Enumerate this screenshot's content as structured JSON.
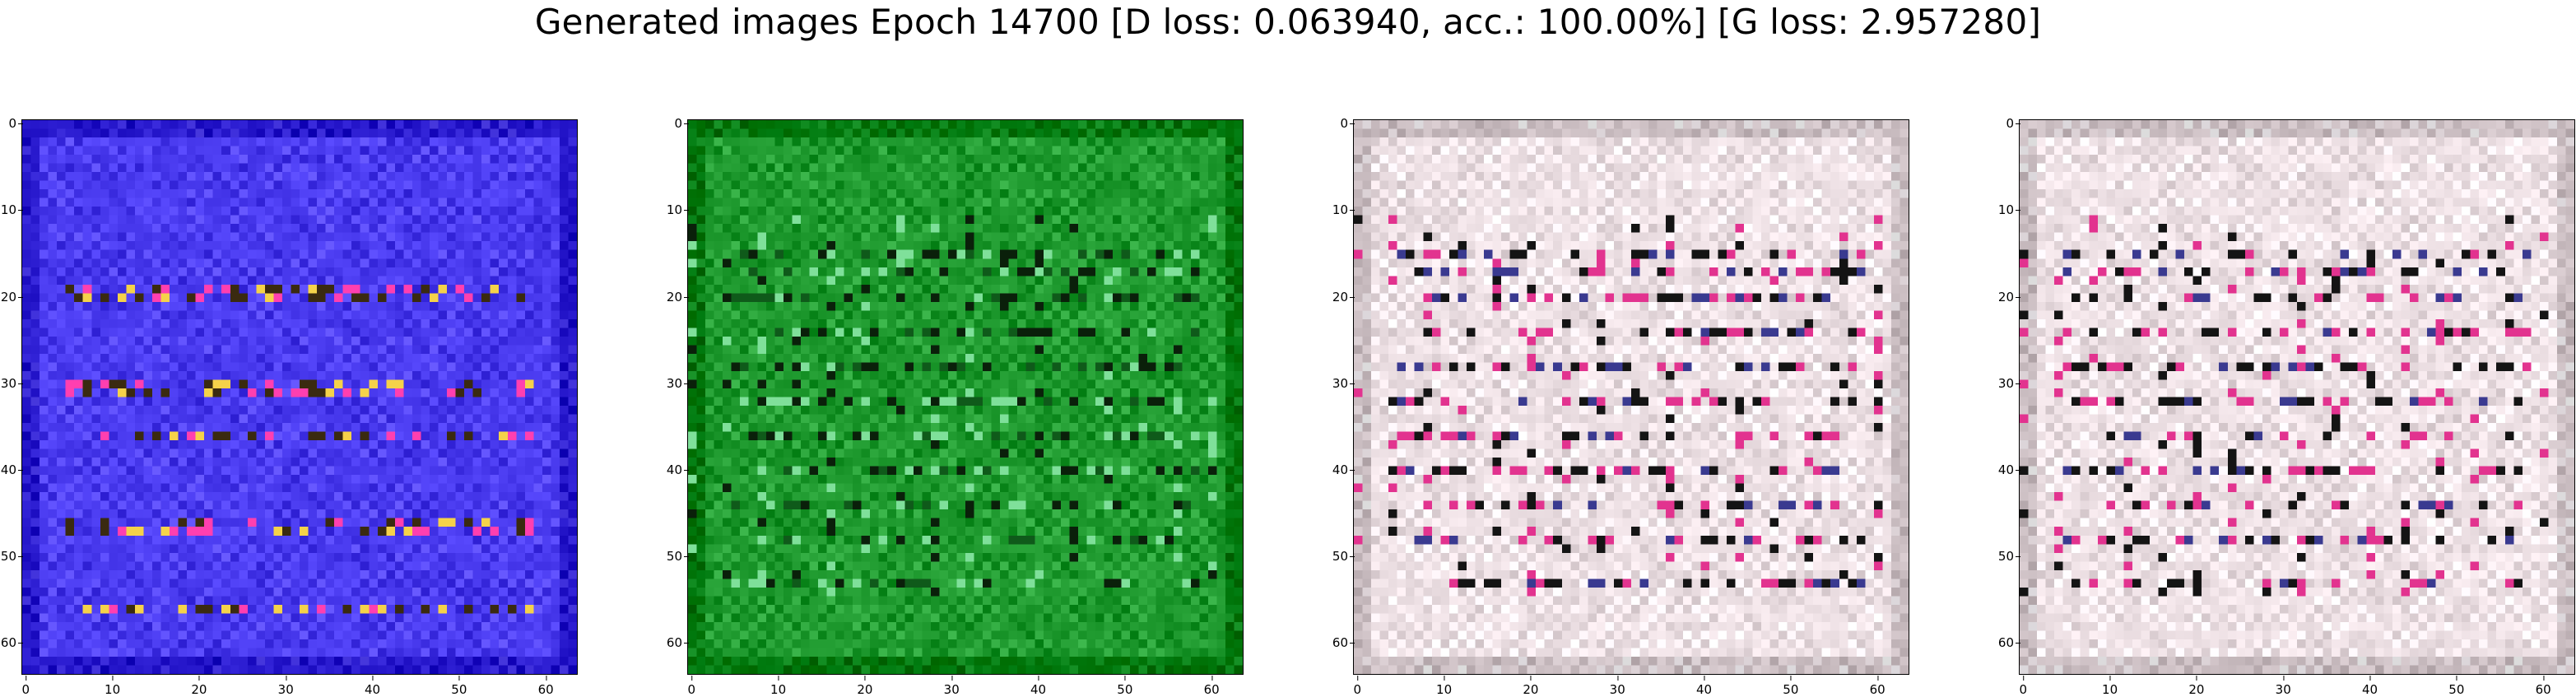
{
  "title": "Generated images Epoch 14700 [D loss: 0.063940, acc.: 100.00%] [G loss: 2.957280]",
  "axes": {
    "ticks": [
      "0",
      "10",
      "20",
      "30",
      "40",
      "50",
      "60"
    ],
    "range": [
      0,
      63
    ]
  },
  "images": [
    {
      "name": "sample-1",
      "palette": {
        "base": "#4b3cf0",
        "stroke_hot": "#ff3fb0",
        "stroke_warm": "#f5d24a",
        "stroke_dark": "#3a2a10"
      },
      "description_colors": "blue-violet background"
    },
    {
      "name": "sample-2",
      "palette": {
        "base": "#1f9a2f",
        "stroke_hot": "#7fe09a",
        "stroke_warm": "#0f5a1a",
        "stroke_dark": "#0a200a"
      },
      "description_colors": "green background"
    },
    {
      "name": "sample-3",
      "palette": {
        "base": "#efe2e6",
        "stroke_hot": "#e2338f",
        "stroke_warm": "#3a3a90",
        "stroke_dark": "#141414"
      },
      "description_colors": "pale pink background"
    },
    {
      "name": "sample-4",
      "palette": {
        "base": "#efe2e6",
        "stroke_hot": "#e2338f",
        "stroke_warm": "#3a3a90",
        "stroke_dark": "#141414"
      },
      "description_colors": "pale pink background"
    }
  ]
}
